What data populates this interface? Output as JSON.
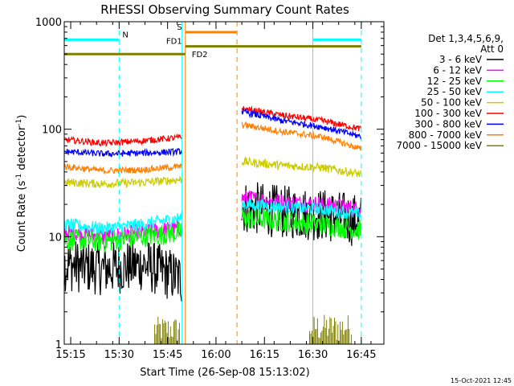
{
  "chart_data": {
    "type": "line",
    "title": "RHESSI Observing Summary Count Rates",
    "xlabel": "Start Time (26-Sep-08 15:13:02)",
    "ylabel_parts": [
      "Count Rate (s",
      "-1",
      " detector",
      "-1",
      ")"
    ],
    "yscale": "log",
    "ylim": [
      1,
      1000
    ],
    "yticks": [
      {
        "v": 1,
        "label": "1"
      },
      {
        "v": 10,
        "label": "10"
      },
      {
        "v": 100,
        "label": "100"
      },
      {
        "v": 1000,
        "label": "1000"
      }
    ],
    "xlim_min": [
      0,
      99
    ],
    "xticks": [
      {
        "v": 2,
        "label": "15:15"
      },
      {
        "v": 17,
        "label": "15:30"
      },
      {
        "v": 32,
        "label": "15:45"
      },
      {
        "v": 47,
        "label": "16:00"
      },
      {
        "v": 62,
        "label": "16:15"
      },
      {
        "v": 77,
        "label": "16:30"
      },
      {
        "v": 92,
        "label": "16:45"
      }
    ],
    "legend_title": [
      "Det 1,3,4,5,6,9,",
      "Att 0"
    ],
    "legend_position": "right",
    "segments_min": [
      [
        0,
        36.5
      ],
      [
        55,
        92
      ]
    ],
    "series": [
      {
        "name": "3 - 6 keV",
        "color": "#000000",
        "seg1": [
          5.5,
          5.0,
          5.5,
          4.0
        ],
        "seg2": [
          19,
          17,
          16,
          14
        ],
        "noise": 0.25
      },
      {
        "name": "6 - 12 keV",
        "color": "#ff00ff",
        "seg1": [
          11,
          10,
          11,
          12
        ],
        "seg2": [
          23,
          21,
          20,
          18
        ],
        "noise": 0.08
      },
      {
        "name": "12 - 25 keV",
        "color": "#00ff00",
        "seg1": [
          9.5,
          9,
          10,
          11
        ],
        "seg2": [
          15,
          14,
          13,
          11.5
        ],
        "noise": 0.1
      },
      {
        "name": "25 - 50 keV",
        "color": "#00ffff",
        "seg1": [
          13,
          12,
          13,
          15
        ],
        "seg2": [
          20,
          19,
          18,
          16
        ],
        "noise": 0.06
      },
      {
        "name": "50 - 100 keV",
        "color": "#cccc00",
        "seg1": [
          32,
          31,
          32,
          34
        ],
        "seg2": [
          50,
          46,
          44,
          38
        ],
        "noise": 0.04
      },
      {
        "name": "100 - 300 keV",
        "color": "#ff0000",
        "seg1": [
          80,
          74,
          78,
          84
        ],
        "seg2": [
          155,
          135,
          120,
          100
        ],
        "noise": 0.03
      },
      {
        "name": "300 - 800 keV",
        "color": "#0000ff",
        "seg1": [
          62,
          59,
          60,
          62
        ],
        "seg2": [
          145,
          120,
          105,
          85
        ],
        "noise": 0.03
      },
      {
        "name": "800 - 7000 keV",
        "color": "#ff8000",
        "seg1": [
          45,
          41,
          42,
          45
        ],
        "seg2": [
          110,
          95,
          85,
          65
        ],
        "noise": 0.03
      },
      {
        "name": "7000 - 15000 keV",
        "color": "#808000",
        "seg1": [],
        "seg2": [],
        "noise": 0
      }
    ],
    "flag_bars": [
      {
        "label": "N",
        "color": "#00ffff",
        "start": 0,
        "end": 17,
        "y": 680
      },
      {
        "label": "",
        "color": "#00ffff",
        "start": 77,
        "end": 92,
        "y": 680
      },
      {
        "label": "S",
        "color": "#ff8000",
        "start": 37.5,
        "end": 53.5,
        "y": 800
      },
      {
        "label": "FD1",
        "color": "#808000",
        "start": 37.5,
        "end": 92,
        "y": 590
      },
      {
        "label": "FD2",
        "color": "#808000",
        "start": 0,
        "end": 37.5,
        "y": 500
      }
    ],
    "vertical_lines": [
      {
        "x": 0,
        "color": "#00ffff",
        "style": "solid"
      },
      {
        "x": 17,
        "color": "#00ffff",
        "style": "dashed"
      },
      {
        "x": 36.5,
        "color": "#00ffff",
        "style": "solid"
      },
      {
        "x": 37.5,
        "color": "#ff8000",
        "style": "solid"
      },
      {
        "x": 53.5,
        "color": "#ff8000",
        "style": "dashed"
      },
      {
        "x": 77,
        "color": "#00ffff",
        "style": "solid"
      },
      {
        "x": 92,
        "color": "#00ffff",
        "style": "dashed"
      }
    ],
    "spikes_7000": [
      {
        "from": 28,
        "to": 36,
        "max": 1.8
      },
      {
        "from": 76,
        "to": 89,
        "max": 1.9
      }
    ]
  },
  "footer": {
    "date": "15-Oct-2021 12:45"
  }
}
